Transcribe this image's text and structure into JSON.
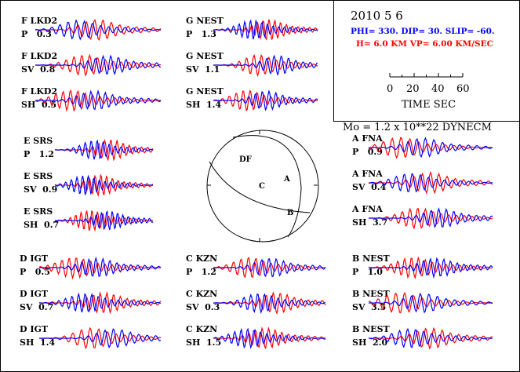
{
  "header": {
    "date": "2010  5  6",
    "mechanism": "PHI= 330. DIP= 30. SLIP= -60.",
    "depth_velocity": "H=  6.0 KM  VP= 6.00 KM/SEC",
    "time_scale": {
      "ticks": [
        "0",
        "20",
        "40",
        "60"
      ],
      "label": "TIME  SEC"
    },
    "moment": "Mo =  1.2 x 10**22 DYNECM"
  },
  "colors": {
    "observed": "#0000ff",
    "synthetic": "#ff0000",
    "text_blue": "#0000ff",
    "text_red": "#ff0000"
  },
  "stations": [
    {
      "code": "F",
      "name": "F LKD2",
      "components": [
        {
          "comp": "P",
          "amp": "0.3",
          "label": "P   0.3"
        },
        {
          "comp": "SV",
          "amp": "0.8",
          "label": "SV  0.8"
        },
        {
          "comp": "SH",
          "amp": "0.5",
          "label": "SH  0.5"
        }
      ]
    },
    {
      "code": "G",
      "name": "G NEST",
      "components": [
        {
          "comp": "P",
          "amp": "1.3",
          "label": "P   1.3"
        },
        {
          "comp": "SV",
          "amp": "1.1",
          "label": "SV  1.1"
        },
        {
          "comp": "SH",
          "amp": "1.4",
          "label": "SH  1.4"
        }
      ]
    },
    {
      "code": "E",
      "name": "E SRS",
      "components": [
        {
          "comp": "P",
          "amp": "1.2",
          "label": "P   1.2"
        },
        {
          "comp": "SV",
          "amp": "0.9",
          "label": "SV  0.9"
        },
        {
          "comp": "SH",
          "amp": "0.7",
          "label": "SH  0.7"
        }
      ]
    },
    {
      "code": "A",
      "name": "A FNA",
      "components": [
        {
          "comp": "P",
          "amp": "0.9",
          "label": "P   0.9"
        },
        {
          "comp": "SV",
          "amp": "0.4",
          "label": "SV  0.4"
        },
        {
          "comp": "SH",
          "amp": "3.7",
          "label": "SH  3.7"
        }
      ]
    },
    {
      "code": "D",
      "name": "D IGT",
      "components": [
        {
          "comp": "P",
          "amp": "0.5",
          "label": "P   0.5"
        },
        {
          "comp": "SV",
          "amp": "0.7",
          "label": "SV  0.7"
        },
        {
          "comp": "SH",
          "amp": "1.4",
          "label": "SH  1.4"
        }
      ]
    },
    {
      "code": "C",
      "name": "C KZN",
      "components": [
        {
          "comp": "P",
          "amp": "1.2",
          "label": "P   1.2"
        },
        {
          "comp": "SV",
          "amp": "0.3",
          "label": "SV  0.3"
        },
        {
          "comp": "SH",
          "amp": "1.5",
          "label": "SH  1.5"
        }
      ]
    },
    {
      "code": "B",
      "name": "B NEST",
      "components": [
        {
          "comp": "P",
          "amp": "1.0",
          "label": "P   1.0"
        },
        {
          "comp": "SV",
          "amp": "3.5",
          "label": "SV  3.5"
        },
        {
          "comp": "SH",
          "amp": "2.0",
          "label": "SH  2.0"
        }
      ]
    }
  ],
  "beachball": {
    "station_labels": [
      "DF",
      "A",
      "C",
      "B"
    ]
  }
}
